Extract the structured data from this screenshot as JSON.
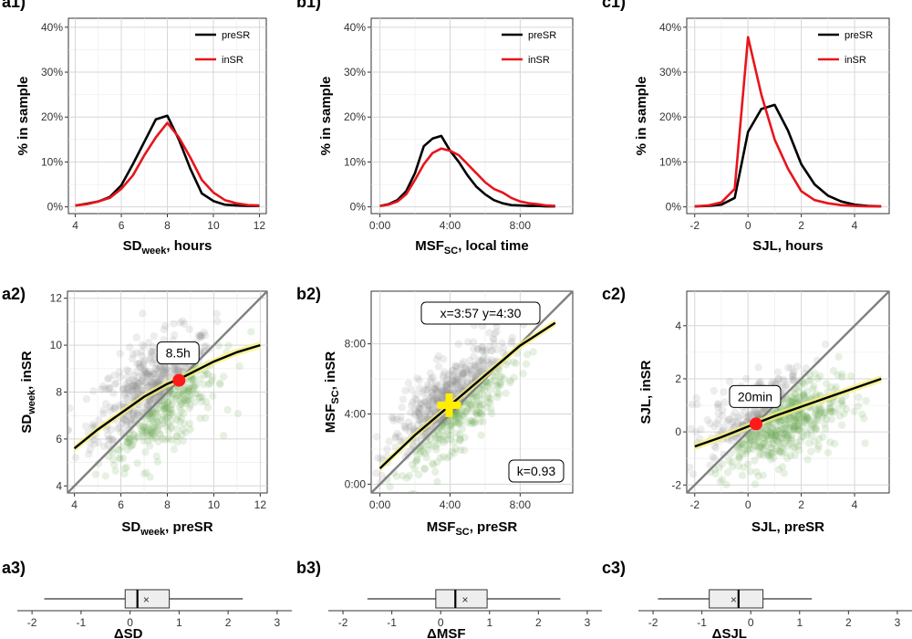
{
  "colors": {
    "preSR": "#000000",
    "inSR": "#e8141c",
    "scatter_gray": "#8c8c8c",
    "scatter_green": "#6aa84f",
    "fit": "#000000",
    "ci": "#f5f07a",
    "identity": "#808080",
    "marker_red": "#ff1a1a",
    "marker_yellow": "#ffee00"
  },
  "chart_data": [
    {
      "panel": "a1)",
      "type": "line",
      "xlabel": "SD",
      "xlabel_sub": "week",
      "xlabel_tail": ", hours",
      "ylabel": "% in sample",
      "xlim": [
        3.7,
        12.3
      ],
      "ylim": [
        -1.5,
        42
      ],
      "xticks": [
        4,
        6,
        8,
        10,
        12
      ],
      "xtick_labels": [
        "4",
        "6",
        "8",
        "10",
        "12"
      ],
      "yticks": [
        0,
        10,
        20,
        30,
        40
      ],
      "ytick_labels": [
        "0%",
        "10%",
        "20%",
        "30%",
        "40%"
      ],
      "legend": [
        "preSR",
        "inSR"
      ],
      "series": [
        {
          "name": "preSR",
          "x": [
            4,
            4.5,
            5,
            5.5,
            6,
            6.5,
            7,
            7.5,
            8,
            8.5,
            9,
            9.5,
            10,
            10.5,
            11,
            11.5,
            12
          ],
          "y": [
            0.3,
            0.7,
            1.2,
            2.2,
            4.8,
            9.5,
            14.5,
            19.5,
            20.3,
            15.0,
            8.5,
            3.0,
            1.3,
            0.5,
            0.3,
            0.2,
            0.2
          ]
        },
        {
          "name": "inSR",
          "x": [
            4,
            4.5,
            5,
            5.5,
            6,
            6.5,
            7,
            7.5,
            8,
            8.5,
            9,
            9.5,
            10,
            10.5,
            11,
            11.5,
            12
          ],
          "y": [
            0.3,
            0.6,
            1.2,
            2.0,
            4.0,
            7.0,
            11.5,
            15.5,
            18.7,
            15.5,
            11.0,
            6.0,
            3.2,
            1.5,
            0.8,
            0.4,
            0.3
          ]
        }
      ]
    },
    {
      "panel": "b1)",
      "type": "line",
      "xlabel": "MSF",
      "xlabel_sub": "SC",
      "xlabel_tail": ", local time",
      "ylabel": "% in sample",
      "xlim": [
        -0.5,
        11.0
      ],
      "ylim": [
        -1.5,
        42
      ],
      "xticks": [
        0,
        4,
        8
      ],
      "xtick_labels": [
        "0:00",
        "4:00",
        "8:00"
      ],
      "yticks": [
        0,
        10,
        20,
        30,
        40
      ],
      "ytick_labels": [
        "0%",
        "10%",
        "20%",
        "30%",
        "40%"
      ],
      "legend": [
        "preSR",
        "inSR"
      ],
      "series": [
        {
          "name": "preSR",
          "x": [
            0,
            0.5,
            1,
            1.5,
            2,
            2.5,
            3,
            3.5,
            4,
            4.5,
            5,
            5.5,
            6,
            6.5,
            7,
            7.5,
            8,
            8.5,
            9,
            9.5,
            10
          ],
          "y": [
            0.2,
            0.6,
            1.5,
            3.5,
            7.5,
            13.5,
            15.2,
            15.8,
            12.5,
            10.0,
            7.0,
            4.5,
            2.8,
            1.5,
            0.8,
            0.4,
            0.3,
            0.2,
            0.2,
            0.1,
            0.1
          ]
        },
        {
          "name": "inSR",
          "x": [
            0,
            0.5,
            1,
            1.5,
            2,
            2.5,
            3,
            3.5,
            4,
            4.5,
            5,
            5.5,
            6,
            6.5,
            7,
            7.5,
            8,
            8.5,
            9,
            9.5,
            10
          ],
          "y": [
            0.2,
            0.5,
            1.2,
            2.8,
            6.0,
            9.5,
            12.0,
            13.0,
            12.5,
            11.5,
            9.5,
            7.5,
            5.5,
            4.0,
            3.2,
            2.0,
            1.2,
            0.8,
            0.6,
            0.3,
            0.2
          ]
        }
      ]
    },
    {
      "panel": "c1)",
      "type": "line",
      "xlabel": "SJL, hours",
      "ylabel": "% in sample",
      "xlim": [
        -2.3,
        5.3
      ],
      "ylim": [
        -1.5,
        42
      ],
      "xticks": [
        -2,
        0,
        2,
        4
      ],
      "xtick_labels": [
        "-2",
        "0",
        "2",
        "4"
      ],
      "yticks": [
        0,
        10,
        20,
        30,
        40
      ],
      "ytick_labels": [
        "0%",
        "10%",
        "20%",
        "30%",
        "40%"
      ],
      "legend": [
        "preSR",
        "inSR"
      ],
      "series": [
        {
          "name": "preSR",
          "x": [
            -2,
            -1.5,
            -1,
            -0.5,
            0,
            0.5,
            1,
            1.5,
            2,
            2.5,
            3,
            3.5,
            4,
            4.5,
            5
          ],
          "y": [
            0.1,
            0.2,
            0.5,
            2.0,
            16.7,
            21.8,
            22.7,
            17.0,
            9.5,
            5.0,
            2.5,
            1.2,
            0.5,
            0.2,
            0.1
          ]
        },
        {
          "name": "inSR",
          "x": [
            -2,
            -1.5,
            -1,
            -0.5,
            0,
            0.5,
            1,
            1.5,
            2,
            2.5,
            3,
            3.5,
            4,
            4.5,
            5
          ],
          "y": [
            0.1,
            0.3,
            1.0,
            4.0,
            37.8,
            25.0,
            15.0,
            8.5,
            3.5,
            1.5,
            0.8,
            0.4,
            0.2,
            0.1,
            0.1
          ]
        }
      ]
    },
    {
      "panel": "a2)",
      "type": "scatter",
      "xlabel": "SD",
      "xlabel_sub": "week",
      "xlabel_tail": ", preSR",
      "ylabel": "SD",
      "ylabel_sub": "week",
      "ylabel_tail": ", inSR",
      "xlim": [
        3.7,
        12.3
      ],
      "ylim": [
        3.7,
        12.3
      ],
      "xticks": [
        4,
        6,
        8,
        10,
        12
      ],
      "xtick_labels": [
        "4",
        "6",
        "8",
        "10",
        "12"
      ],
      "yticks": [
        4,
        6,
        8,
        10,
        12
      ],
      "ytick_labels": [
        "4",
        "6",
        "8",
        "10",
        "12"
      ],
      "cloud": {
        "cx": 7.5,
        "cy": 7.8,
        "sx": 1.3,
        "sy": 1.3,
        "rho": 0.45
      },
      "fit": {
        "x": [
          4,
          5,
          6,
          7,
          8,
          8.5,
          9,
          10,
          11,
          12
        ],
        "y": [
          5.6,
          6.4,
          7.1,
          7.8,
          8.35,
          8.55,
          8.8,
          9.3,
          9.7,
          10.0
        ]
      },
      "marker": {
        "shape": "dot",
        "x": 8.5,
        "y": 8.5,
        "label": "8.5h"
      }
    },
    {
      "panel": "b2)",
      "type": "scatter",
      "xlabel": "MSF",
      "xlabel_sub": "SC",
      "xlabel_tail": ", preSR",
      "ylabel": "MSF",
      "ylabel_sub": "SC",
      "ylabel_tail": ", inSR",
      "xlim": [
        -0.5,
        11.0
      ],
      "ylim": [
        -0.5,
        11.0
      ],
      "xticks": [
        0,
        4,
        8
      ],
      "xtick_labels": [
        "0:00",
        "4:00",
        "8:00"
      ],
      "yticks": [
        0,
        4,
        8
      ],
      "ytick_labels": [
        "0:00",
        "4:00",
        "8:00"
      ],
      "cloud": {
        "cx": 4.0,
        "cy": 4.5,
        "sx": 1.6,
        "sy": 1.7,
        "rho": 0.7
      },
      "fit": {
        "x": [
          0,
          2,
          4,
          6,
          8,
          10
        ],
        "y": [
          0.9,
          2.8,
          4.5,
          6.2,
          7.9,
          9.2
        ]
      },
      "marker": {
        "shape": "cross",
        "x": 3.95,
        "y": 4.5
      },
      "annotation_top": "x=3:57 y=4:30",
      "annotation_bottom": "k=0.93"
    },
    {
      "panel": "c2)",
      "type": "scatter",
      "xlabel": "SJL, preSR",
      "ylabel": "SJL, inSR",
      "xlim": [
        -2.3,
        5.3
      ],
      "ylim": [
        -2.3,
        5.3
      ],
      "xticks": [
        -2,
        0,
        2,
        4
      ],
      "xtick_labels": [
        "-2",
        "0",
        "2",
        "4"
      ],
      "yticks": [
        -2,
        0,
        2,
        4
      ],
      "ytick_labels": [
        "-2",
        "0",
        "2",
        "4"
      ],
      "cloud": {
        "cx": 1.0,
        "cy": 0.5,
        "sx": 1.2,
        "sy": 0.9,
        "rho": 0.35
      },
      "fit": {
        "x": [
          -2,
          -1,
          0,
          1,
          2,
          3,
          4,
          5
        ],
        "y": [
          -0.55,
          -0.2,
          0.2,
          0.6,
          0.95,
          1.3,
          1.65,
          2.0
        ]
      },
      "marker": {
        "shape": "dot",
        "x": 0.3,
        "y": 0.3,
        "label": "20min"
      }
    },
    {
      "panel": "a3)",
      "type": "boxplot",
      "xlim": [
        -2.3,
        3.3
      ],
      "xticks": [
        -2,
        -1,
        0,
        1,
        2,
        3
      ],
      "xtick_labels": [
        "-2",
        "-1",
        "0",
        "1",
        "2",
        "3"
      ],
      "whisker_low": -1.75,
      "q1": -0.1,
      "median": 0.15,
      "q3": 0.8,
      "whisker_high": 2.3,
      "mean": 0.33,
      "xlabel_partial": "ΔSD"
    },
    {
      "panel": "b3)",
      "type": "boxplot",
      "xlim": [
        -2.3,
        3.3
      ],
      "xticks": [
        -2,
        -1,
        0,
        1,
        2,
        3
      ],
      "xtick_labels": [
        "-2",
        "-1",
        "0",
        "1",
        "2",
        "3"
      ],
      "whisker_low": -1.5,
      "q1": -0.1,
      "median": 0.3,
      "q3": 0.95,
      "whisker_high": 2.45,
      "mean": 0.5,
      "xlabel_partial": "ΔMSF"
    },
    {
      "panel": "c3)",
      "type": "boxplot",
      "xlim": [
        -2.3,
        3.3
      ],
      "xticks": [
        -2,
        -1,
        0,
        1,
        2,
        3
      ],
      "xtick_labels": [
        "-2",
        "-1",
        "0",
        "1",
        "2",
        "3"
      ],
      "whisker_low": -1.9,
      "q1": -0.85,
      "median": -0.25,
      "q3": 0.25,
      "whisker_high": 1.25,
      "mean": -0.35,
      "xlabel_partial": "ΔSJL"
    }
  ]
}
